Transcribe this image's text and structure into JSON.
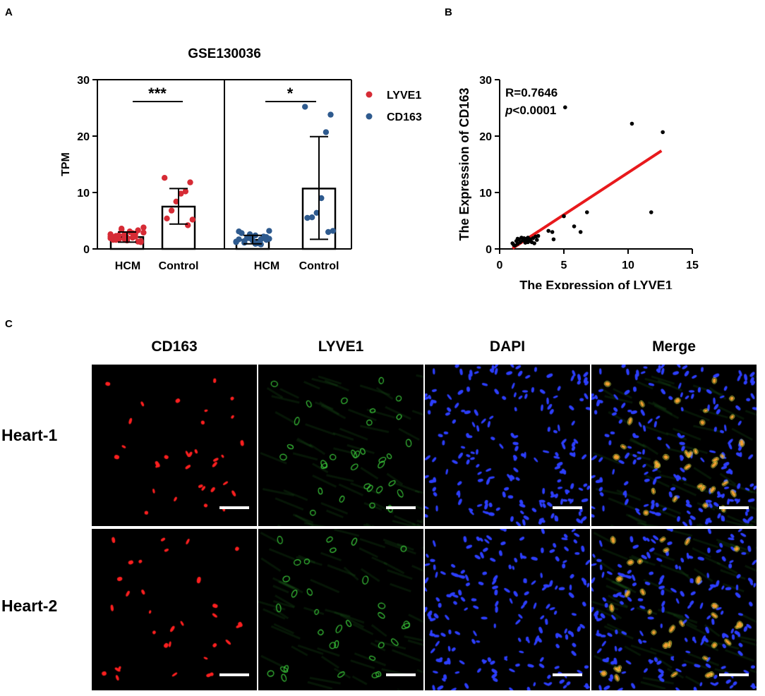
{
  "panels": {
    "a": "A",
    "b": "B",
    "c": "C"
  },
  "chart_data": [
    {
      "type": "bar",
      "title": "GSE130036",
      "ylabel": "TPM",
      "xlabel": "",
      "ylim": [
        0,
        30
      ],
      "yticks": [
        "0",
        "10",
        "20",
        "30"
      ],
      "categories": [
        "HCM",
        "Control"
      ],
      "legend": {
        "placement": "right",
        "entries": [
          {
            "name": "LYVE1",
            "color": "#d62b35"
          },
          {
            "name": "CD163",
            "color": "#2e5a8e"
          }
        ]
      },
      "significance": [
        "***",
        "*"
      ],
      "series": [
        {
          "name": "LYVE1",
          "color": "#d62b35",
          "means": [
            2.1,
            7.5
          ],
          "sd_low": [
            1.2,
            4.4
          ],
          "sd_high": [
            3.0,
            10.7
          ],
          "points": [
            [
              2.6,
              1.4,
              2.2,
              3.0,
              1.8,
              2.4,
              1.6,
              2.9,
              3.3,
              2.0,
              1.5,
              3.6,
              2.3,
              1.9,
              1.2,
              2.7,
              3.1,
              2.5,
              1.7,
              2.1,
              3.8,
              1.3,
              2.8,
              2.0,
              3.4,
              1.6,
              2.2
            ],
            [
              12.6,
              11.8,
              10.2,
              9.8,
              8.4,
              6.8,
              5.4,
              5.2,
              4.2
            ]
          ]
        },
        {
          "name": "CD163",
          "color": "#2e5a8e",
          "means": [
            1.6,
            10.7
          ],
          "sd_low": [
            0.9,
            1.7
          ],
          "sd_high": [
            2.4,
            19.9
          ],
          "points": [
            [
              1.2,
              2.1,
              1.7,
              0.9,
              2.6,
              1.4,
              3.1,
              1.8,
              2.2,
              1.0,
              1.5,
              2.0,
              2.8,
              1.3,
              1.6,
              0.8,
              2.4,
              1.9,
              1.1,
              1.7,
              3.2
            ],
            [
              25.2,
              23.8,
              20.7,
              9.0,
              6.4,
              5.6,
              5.5,
              3.2,
              3.0
            ]
          ]
        }
      ]
    },
    {
      "type": "scatter",
      "xlabel": "The Expression of LYVE1",
      "ylabel": "The Expression of CD163",
      "xlim": [
        0,
        15
      ],
      "ylim": [
        0,
        30
      ],
      "xticks": [
        "0",
        "5",
        "10",
        "15"
      ],
      "yticks": [
        "0",
        "10",
        "20",
        "30"
      ],
      "annotation_r": "R=0.7646",
      "annotation_p_italic": "p",
      "annotation_p_rest": "<0.0001",
      "fit_line": {
        "color": "#e8191c",
        "x": [
          1.0,
          12.6
        ],
        "y": [
          0.1,
          17.4
        ]
      },
      "points": [
        [
          1.0,
          1.0
        ],
        [
          1.2,
          0.6
        ],
        [
          1.3,
          1.4
        ],
        [
          1.4,
          0.9
        ],
        [
          1.5,
          1.7
        ],
        [
          1.6,
          1.2
        ],
        [
          1.7,
          2.0
        ],
        [
          1.8,
          1.5
        ],
        [
          1.9,
          1.9
        ],
        [
          2.0,
          1.1
        ],
        [
          2.1,
          1.8
        ],
        [
          2.2,
          2.0
        ],
        [
          2.3,
          1.4
        ],
        [
          2.4,
          1.7
        ],
        [
          2.5,
          1.2
        ],
        [
          2.6,
          1.9
        ],
        [
          2.7,
          1.0
        ],
        [
          2.8,
          2.2
        ],
        [
          2.9,
          1.6
        ],
        [
          3.0,
          2.3
        ],
        [
          1.4,
          1.8
        ],
        [
          2.0,
          1.5
        ],
        [
          1.1,
          0.7
        ],
        [
          2.2,
          1.2
        ],
        [
          3.8,
          3.2
        ],
        [
          4.1,
          3.0
        ],
        [
          4.2,
          1.7
        ],
        [
          5.0,
          5.8
        ],
        [
          5.1,
          25.1
        ],
        [
          5.8,
          4.0
        ],
        [
          6.3,
          3.0
        ],
        [
          6.8,
          6.5
        ],
        [
          10.3,
          22.2
        ],
        [
          11.8,
          6.5
        ],
        [
          12.7,
          20.7
        ]
      ]
    }
  ],
  "microscopy": {
    "columns": [
      "CD163",
      "LYVE1",
      "DAPI",
      "Merge"
    ],
    "rows": [
      "Heart-1",
      "Heart-2"
    ],
    "channel_colors": [
      "#ff2020",
      "#3ccd3c",
      "#2d3fff",
      "#f2a030"
    ]
  }
}
